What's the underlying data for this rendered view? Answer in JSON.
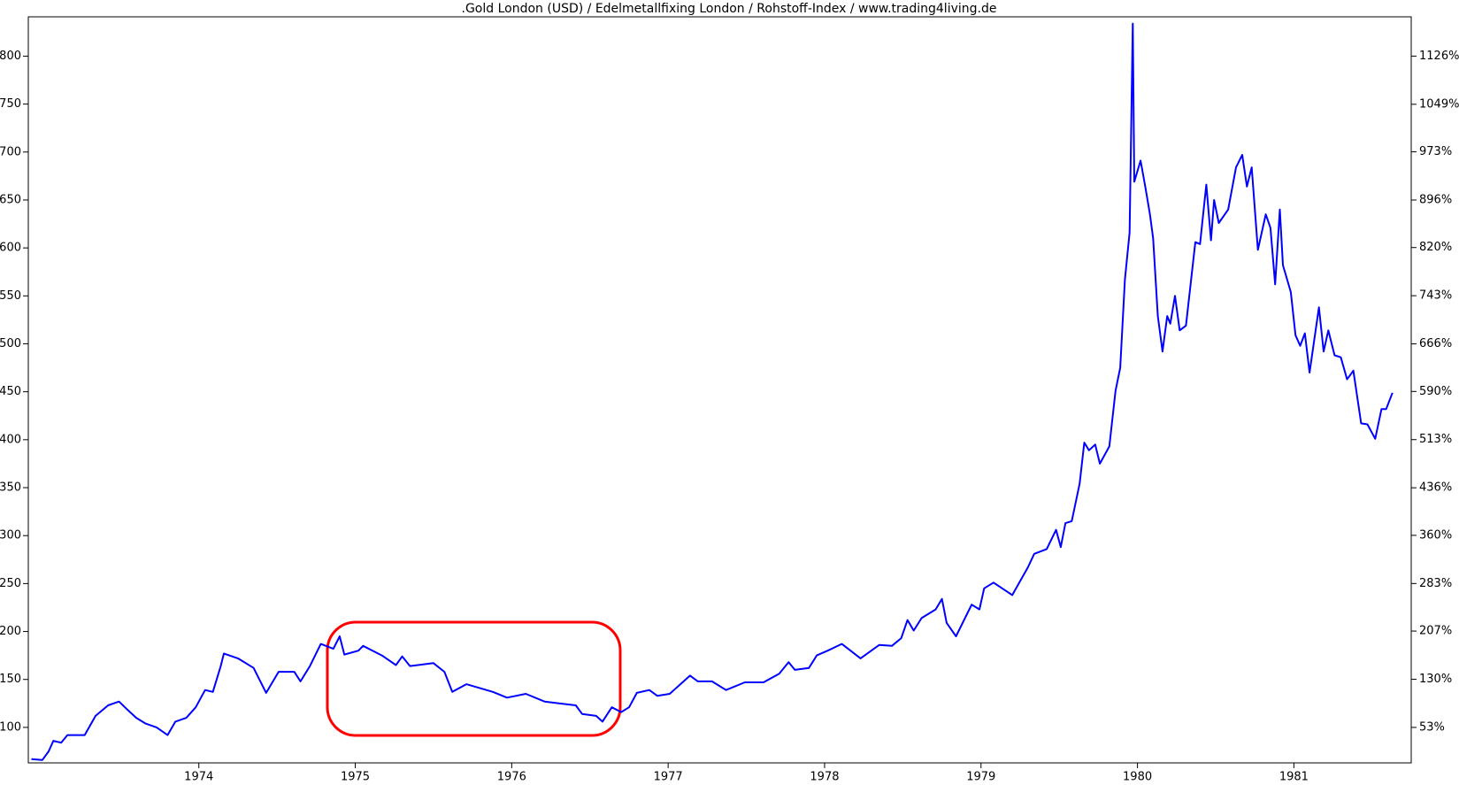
{
  "chart_data": {
    "type": "line",
    "title": ".Gold London (USD) / Edelmetallfixing London / Rohstoff-Index / www.trading4living.de",
    "xlim": [
      1972.91,
      1981.75
    ],
    "xticks": [
      1974,
      1975,
      1976,
      1977,
      1978,
      1979,
      1980,
      1981
    ],
    "ylim": [
      63,
      841
    ],
    "yticks": [
      100,
      150,
      200,
      250,
      300,
      350,
      400,
      450,
      500,
      550,
      600,
      650,
      700,
      750,
      800
    ],
    "y2lim": [
      -3.7,
      1188.8
    ],
    "y2ticks": [
      {
        "value": 53,
        "label": "53%"
      },
      {
        "value": 130,
        "label": "130%"
      },
      {
        "value": 207,
        "label": "207%"
      },
      {
        "value": 283,
        "label": "283%"
      },
      {
        "value": 360,
        "label": "360%"
      },
      {
        "value": 436,
        "label": "436%"
      },
      {
        "value": 513,
        "label": "513%"
      },
      {
        "value": 590,
        "label": "590%"
      },
      {
        "value": 666,
        "label": "666%"
      },
      {
        "value": 743,
        "label": "743%"
      },
      {
        "value": 820,
        "label": "820%"
      },
      {
        "value": 896,
        "label": "896%"
      },
      {
        "value": 973,
        "label": "973%"
      },
      {
        "value": 1049,
        "label": "1049%"
      },
      {
        "value": 1126,
        "label": "1126%"
      }
    ],
    "x": [
      1972.93,
      1973.0,
      1973.04,
      1973.07,
      1973.12,
      1973.16,
      1973.27,
      1973.34,
      1973.42,
      1973.49,
      1973.54,
      1973.6,
      1973.66,
      1973.73,
      1973.8,
      1973.85,
      1973.92,
      1973.98,
      1974.04,
      1974.09,
      1974.14,
      1974.16,
      1974.25,
      1974.35,
      1974.43,
      1974.51,
      1974.61,
      1974.65,
      1974.71,
      1974.78,
      1974.86,
      1974.9,
      1974.93,
      1975.02,
      1975.05,
      1975.17,
      1975.26,
      1975.3,
      1975.35,
      1975.5,
      1975.57,
      1975.62,
      1975.71,
      1975.88,
      1975.97,
      1976.09,
      1976.21,
      1976.41,
      1976.45,
      1976.54,
      1976.58,
      1976.64,
      1976.7,
      1976.75,
      1976.8,
      1976.88,
      1976.93,
      1977.01,
      1977.14,
      1977.19,
      1977.28,
      1977.37,
      1977.49,
      1977.61,
      1977.71,
      1977.77,
      1977.81,
      1977.9,
      1977.95,
      1978.02,
      1978.11,
      1978.23,
      1978.35,
      1978.43,
      1978.49,
      1978.53,
      1978.57,
      1978.62,
      1978.71,
      1978.75,
      1978.78,
      1978.84,
      1978.94,
      1978.99,
      1979.02,
      1979.08,
      1979.2,
      1979.3,
      1979.34,
      1979.42,
      1979.48,
      1979.51,
      1979.54,
      1979.58,
      1979.63,
      1979.66,
      1979.69,
      1979.73,
      1979.76,
      1979.82,
      1979.86,
      1979.89,
      1979.92,
      1979.95,
      1979.97,
      1979.98,
      1980.02,
      1980.05,
      1980.08,
      1980.1,
      1980.13,
      1980.16,
      1980.19,
      1980.21,
      1980.24,
      1980.27,
      1980.31,
      1980.37,
      1980.4,
      1980.44,
      1980.47,
      1980.49,
      1980.52,
      1980.58,
      1980.63,
      1980.67,
      1980.7,
      1980.73,
      1980.77,
      1980.82,
      1980.85,
      1980.88,
      1980.91,
      1980.93,
      1980.98,
      1981.01,
      1981.04,
      1981.07,
      1981.1,
      1981.16,
      1981.19,
      1981.22,
      1981.26,
      1981.3,
      1981.34,
      1981.38,
      1981.43,
      1981.47,
      1981.52,
      1981.56,
      1981.59,
      1981.63
    ],
    "series": [
      {
        "color": "#0000ff",
        "values": [
          67,
          66,
          75,
          86,
          84,
          92,
          92,
          112,
          123,
          127,
          119,
          110,
          104,
          100,
          92,
          106,
          110,
          121,
          139,
          137,
          164,
          177,
          172,
          162,
          136,
          158,
          158,
          148,
          164,
          187,
          182,
          195,
          176,
          180,
          185,
          175,
          165,
          174,
          164,
          167,
          158,
          137,
          145,
          137,
          131,
          135,
          127,
          123,
          114,
          112,
          106,
          121,
          116,
          121,
          136,
          139,
          133,
          135,
          154,
          148,
          148,
          139,
          147,
          147,
          156,
          168,
          160,
          162,
          175,
          180,
          187,
          172,
          186,
          185,
          193,
          212,
          201,
          214,
          223,
          234,
          209,
          195,
          228,
          223,
          245,
          251,
          238,
          267,
          281,
          286,
          306,
          288,
          313,
          315,
          354,
          397,
          389,
          395,
          375,
          393,
          451,
          475,
          567,
          616,
          834,
          669,
          691,
          664,
          635,
          610,
          529,
          492,
          529,
          521,
          550,
          514,
          519,
          606,
          604,
          666,
          608,
          650,
          626,
          640,
          684,
          697,
          664,
          684,
          598,
          635,
          621,
          562,
          640,
          582,
          554,
          509,
          498,
          511,
          470,
          538,
          492,
          514,
          488,
          486,
          463,
          472,
          417,
          416,
          401,
          432,
          432,
          449
        ]
      }
    ]
  }
}
